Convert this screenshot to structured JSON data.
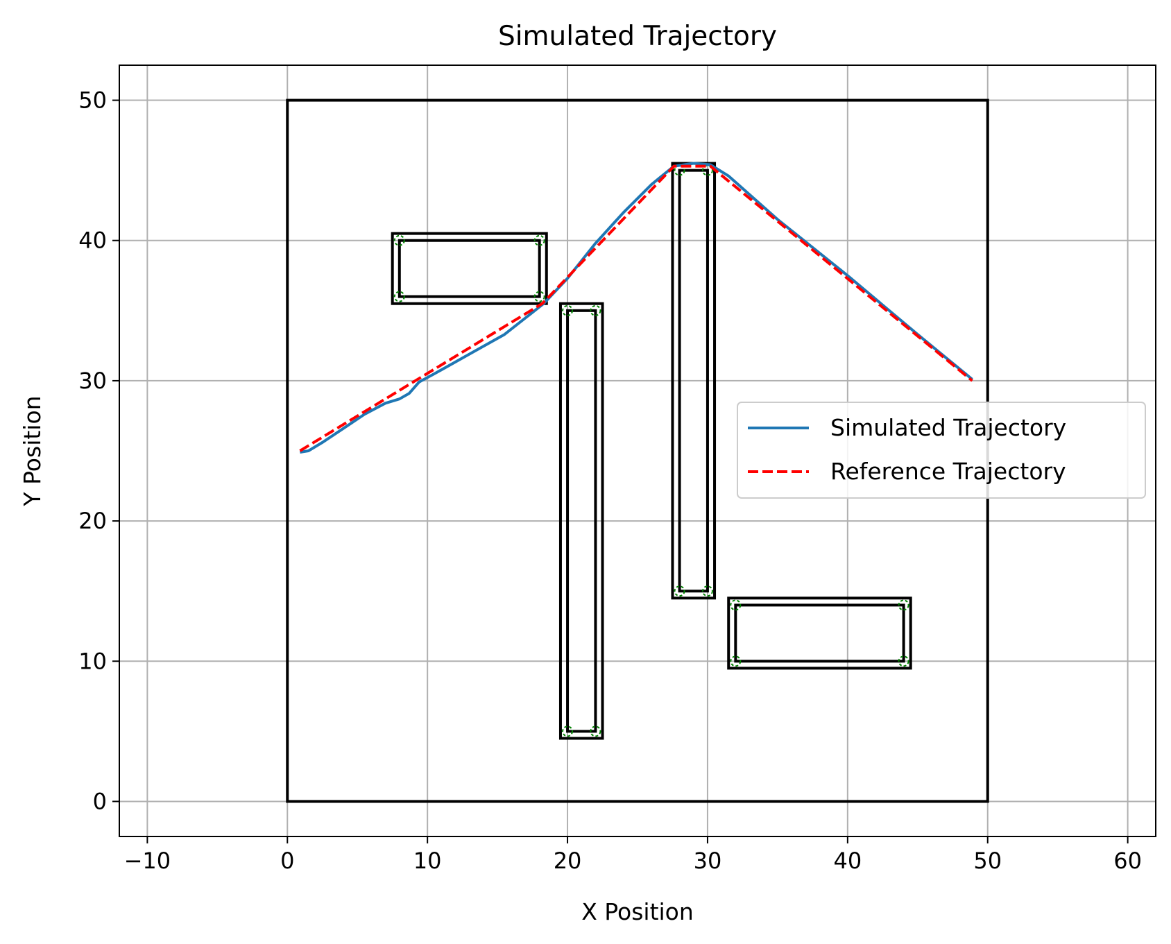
{
  "chart_data": {
    "type": "line",
    "title": "Simulated Trajectory",
    "xlabel": "X Position",
    "ylabel": "Y Position",
    "xlim": [
      -12,
      62
    ],
    "ylim": [
      -2.5,
      52.5
    ],
    "x_ticks": [
      -10,
      0,
      10,
      20,
      30,
      40,
      50,
      60
    ],
    "y_ticks": [
      0,
      10,
      20,
      30,
      40,
      50
    ],
    "x_tick_labels": [
      "−10",
      "0",
      "10",
      "20",
      "30",
      "40",
      "50",
      "60"
    ],
    "y_tick_labels": [
      "0",
      "10",
      "20",
      "30",
      "40",
      "50"
    ],
    "grid": true,
    "legend_position": "center-right",
    "series": [
      {
        "name": "Simulated Trajectory",
        "color": "#1f77b4",
        "style": "solid",
        "x": [
          0.9,
          1.5,
          2.5,
          4,
          5.5,
          7,
          8,
          8.7,
          9.4,
          10.5,
          13,
          15.5,
          18.3,
          20,
          22,
          24,
          26,
          27.6,
          29,
          30.2,
          31.5,
          35,
          40,
          45,
          48.9
        ],
        "y": [
          24.9,
          25.0,
          25.6,
          26.6,
          27.6,
          28.4,
          28.7,
          29.1,
          29.9,
          30.5,
          31.9,
          33.3,
          35.5,
          37.3,
          39.8,
          42.0,
          44.0,
          45.3,
          45.5,
          45.4,
          44.6,
          41.5,
          37.5,
          33.3,
          30.1
        ]
      },
      {
        "name": "Reference Trajectory",
        "color": "#ff0000",
        "style": "dashed",
        "x": [
          0.9,
          18.2,
          27.6,
          30.2,
          48.9
        ],
        "y": [
          25.0,
          35.5,
          45.3,
          45.3,
          30.0
        ]
      }
    ],
    "boundary": {
      "x": [
        0,
        50
      ],
      "y": [
        0,
        50
      ]
    },
    "obstacles": [
      {
        "inner_x": [
          8,
          18
        ],
        "inner_y": [
          36,
          40
        ],
        "outer_x": [
          7.5,
          18.5
        ],
        "outer_y": [
          35.5,
          40.5
        ]
      },
      {
        "inner_x": [
          20,
          22
        ],
        "inner_y": [
          5,
          35
        ],
        "outer_x": [
          19.5,
          22.5
        ],
        "outer_y": [
          4.5,
          35.5
        ]
      },
      {
        "inner_x": [
          28,
          30
        ],
        "inner_y": [
          15,
          45
        ],
        "outer_x": [
          27.5,
          30.5
        ],
        "outer_y": [
          14.5,
          45.5
        ]
      },
      {
        "inner_x": [
          32,
          44
        ],
        "inner_y": [
          10,
          14
        ],
        "outer_x": [
          31.5,
          44.5
        ],
        "outer_y": [
          9.5,
          14.5
        ]
      }
    ],
    "corner_marker_color": "#008000",
    "colors": {
      "grid": "#b0b0b0",
      "frame": "#000000",
      "obstacle": "#000000"
    }
  }
}
